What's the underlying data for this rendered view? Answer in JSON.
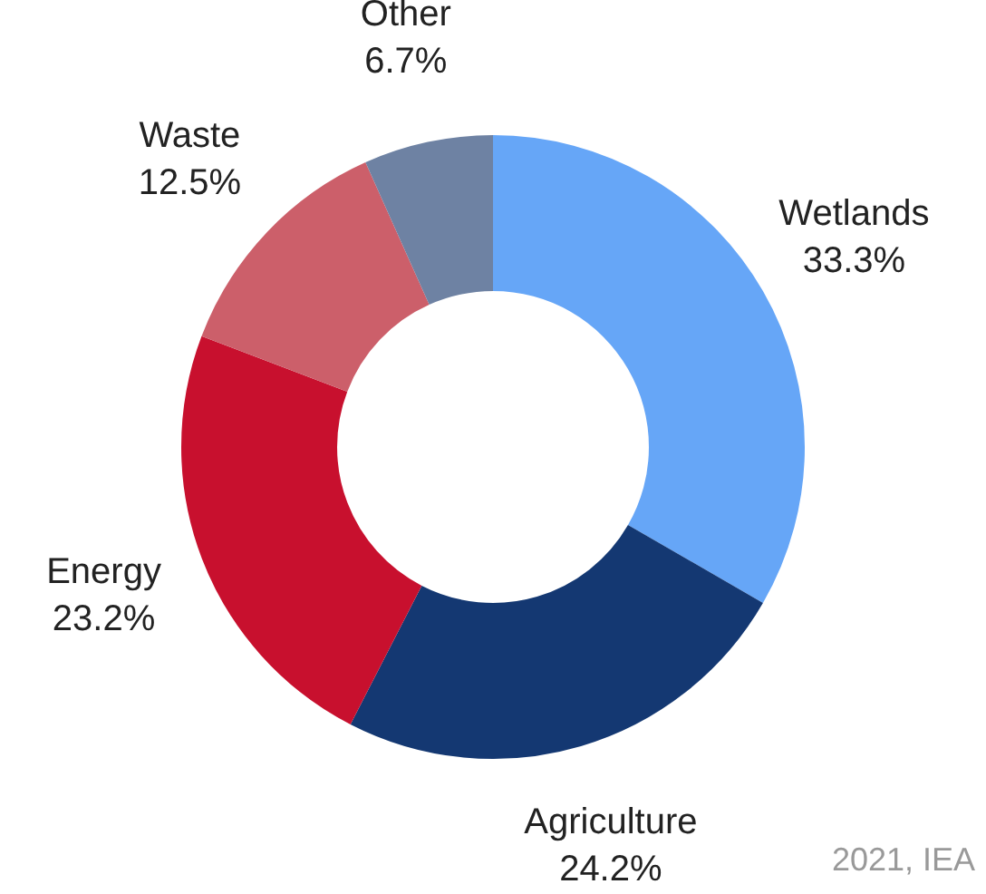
{
  "chart_data": {
    "type": "donut",
    "categories": [
      "Wetlands",
      "Agriculture",
      "Energy",
      "Waste",
      "Other"
    ],
    "values": [
      33.3,
      24.2,
      23.2,
      12.5,
      6.7
    ],
    "value_labels": [
      "33.3%",
      "24.2%",
      "23.2%",
      "12.5%",
      "6.7%"
    ],
    "colors": [
      "#66a6f7",
      "#143872",
      "#c8102e",
      "#cc5f6a",
      "#6e82a3"
    ],
    "annotations": [
      "2021, IEA"
    ],
    "legend": false
  }
}
